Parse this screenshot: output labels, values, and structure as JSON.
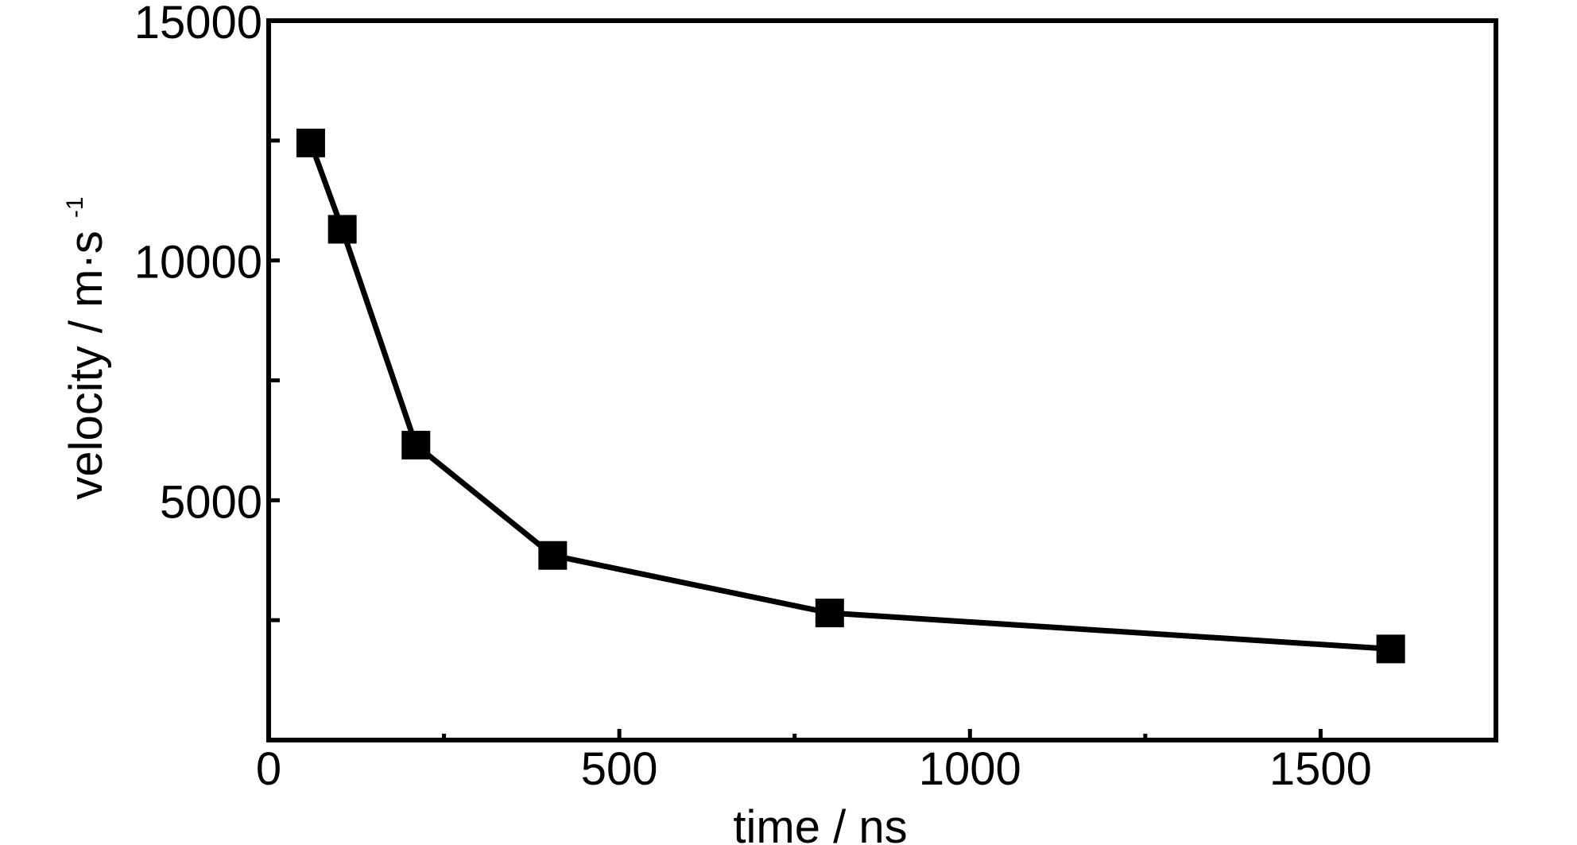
{
  "chart_data": {
    "type": "line",
    "xlabel": "time / ns",
    "ylabel_main": "velocity / m·s",
    "ylabel_superscript": "-1",
    "xlim": [
      0,
      1750
    ],
    "ylim": [
      0,
      15000
    ],
    "x_ticks": [
      "0",
      "500",
      "1000",
      "1500"
    ],
    "y_ticks": [
      "5000",
      "10000",
      "15000"
    ],
    "x_minor_ticks": [
      250,
      750,
      1250
    ],
    "y_minor_ticks": [
      2500,
      7500,
      12500
    ],
    "grid": false,
    "marker": "square",
    "series": [
      {
        "x": [
          60,
          105,
          210,
          405,
          800,
          1600
        ],
        "y": [
          12450,
          10650,
          6150,
          3850,
          2650,
          1900
        ]
      }
    ],
    "colors": {
      "line": "#000000",
      "marker": "#000000"
    }
  }
}
